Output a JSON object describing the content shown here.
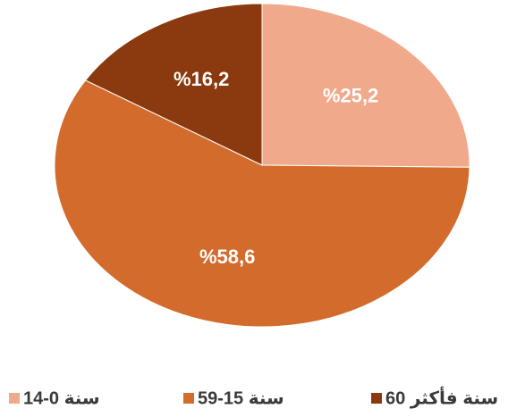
{
  "chart_data": {
    "type": "pie",
    "categories": [
      "14-0 سنة",
      "59-15 سنة",
      "60 سنة فأكثر"
    ],
    "values": [
      25.2,
      58.6,
      16.2
    ],
    "value_labels": [
      "%25,2",
      "%58,6",
      "%16,2"
    ],
    "colors": [
      "#f0a98a",
      "#d36b2c",
      "#8a3a0e"
    ],
    "legend": "bottom"
  }
}
